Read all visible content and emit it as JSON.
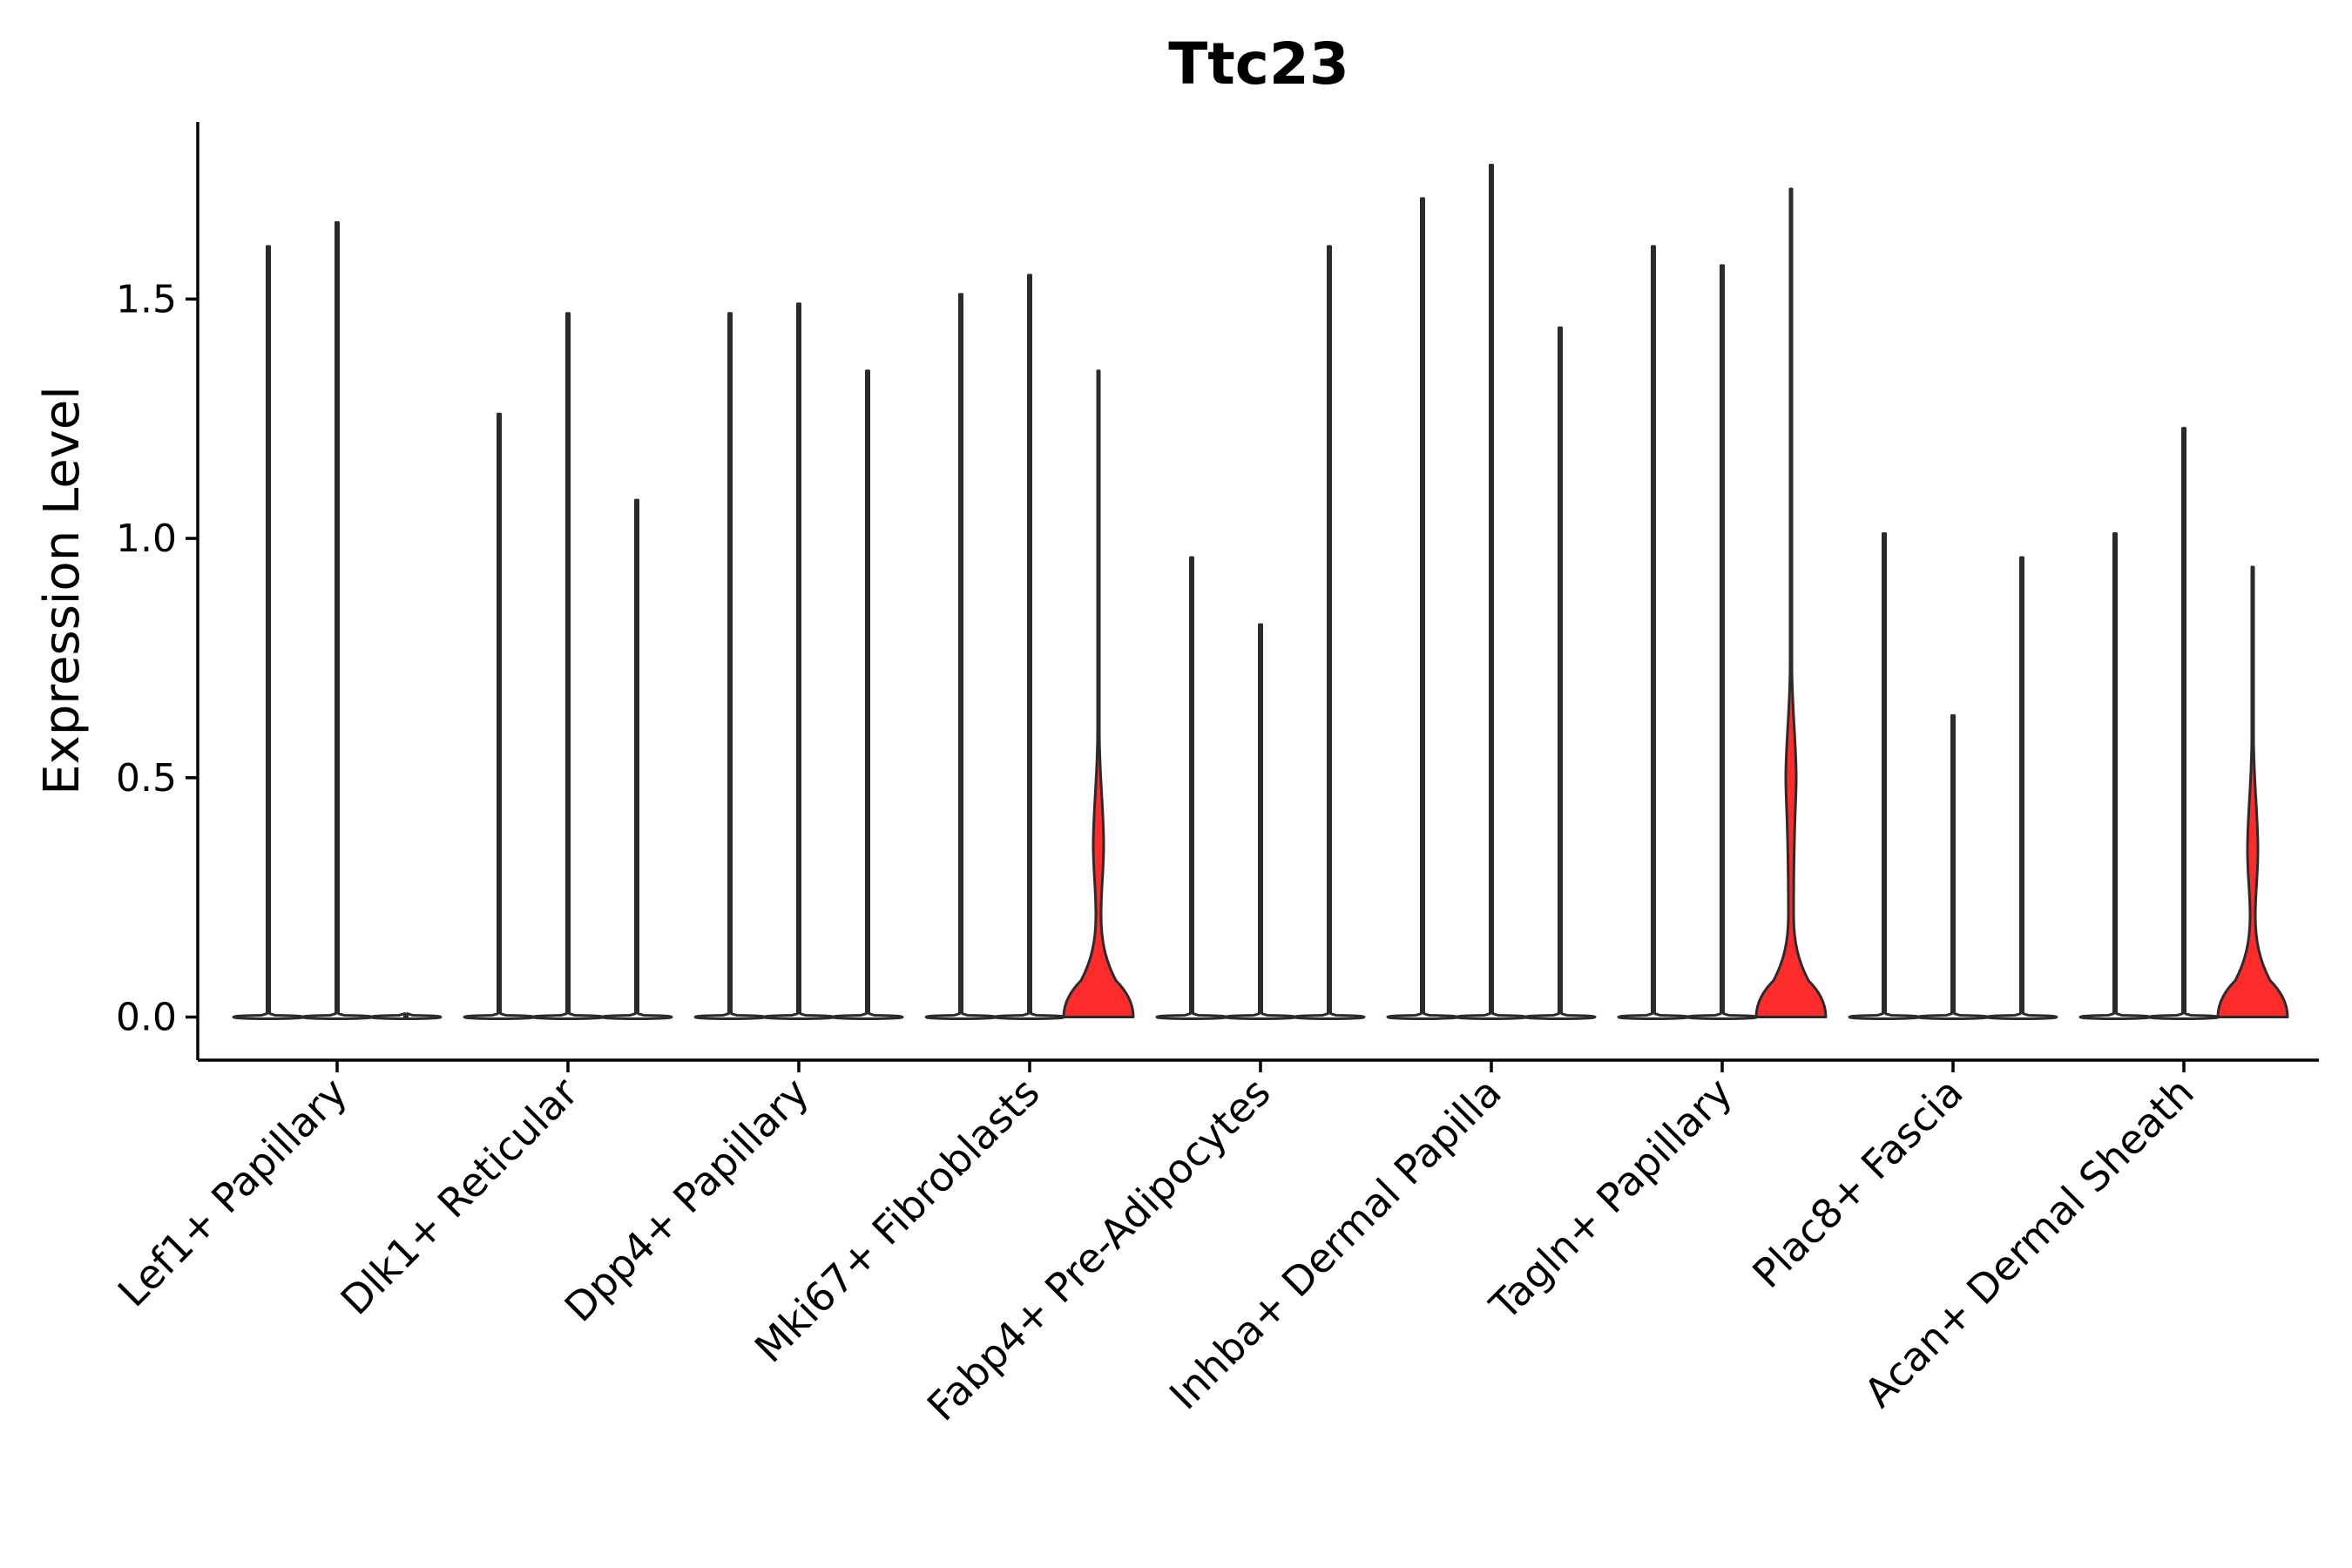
{
  "chart_data": {
    "type": "violin",
    "title": "Ttc23",
    "xlabel": "",
    "ylabel": "Expression Level",
    "ylim": [
      -0.09,
      1.87
    ],
    "yticks": [
      0.0,
      0.5,
      1.0,
      1.5
    ],
    "ytick_labels": [
      "0.0",
      "0.5",
      "1.0",
      "1.5"
    ],
    "categories": [
      "Lef1+ Papillary",
      "Dlk1+ Reticular",
      "Dpp4+ Papillary",
      "Mki67+ Fibroblasts",
      "Fabp4+ Pre-Adipocytes",
      "Inhba+ Dermal Papilla",
      "Tagln+ Papillary",
      "Plac8+ Fascia",
      "Acan+ Dermal Sheath"
    ],
    "violins": [
      {
        "group": "Lef1+ Papillary",
        "slot": 0,
        "max": 1.61,
        "shape": "flat",
        "color": "#ffffff"
      },
      {
        "group": "Lef1+ Papillary",
        "slot": 1,
        "max": 1.66,
        "shape": "flat",
        "color": "#ffffff"
      },
      {
        "group": "Lef1+ Papillary",
        "slot": 2,
        "max": 0.0,
        "shape": "flat",
        "color": "#ffffff"
      },
      {
        "group": "Dlk1+ Reticular",
        "slot": 0,
        "max": 1.26,
        "shape": "flat",
        "color": "#ffffff"
      },
      {
        "group": "Dlk1+ Reticular",
        "slot": 1,
        "max": 1.47,
        "shape": "flat",
        "color": "#ffffff"
      },
      {
        "group": "Dlk1+ Reticular",
        "slot": 2,
        "max": 1.08,
        "shape": "flat",
        "color": "#ffffff"
      },
      {
        "group": "Dpp4+ Papillary",
        "slot": 0,
        "max": 1.47,
        "shape": "flat",
        "color": "#ffffff"
      },
      {
        "group": "Dpp4+ Papillary",
        "slot": 1,
        "max": 1.49,
        "shape": "flat",
        "color": "#ffffff"
      },
      {
        "group": "Dpp4+ Papillary",
        "slot": 2,
        "max": 1.35,
        "shape": "flat",
        "color": "#ffffff"
      },
      {
        "group": "Mki67+ Fibroblasts",
        "slot": 0,
        "max": 1.51,
        "shape": "flat",
        "color": "#ffffff"
      },
      {
        "group": "Mki67+ Fibroblasts",
        "slot": 1,
        "max": 1.55,
        "shape": "flat",
        "color": "#ffffff"
      },
      {
        "group": "Mki67+ Fibroblasts",
        "slot": 2,
        "max": 1.35,
        "shape": "bimodal",
        "mode": 0.36,
        "color": "#ff2a2a"
      },
      {
        "group": "Fabp4+ Pre-Adipocytes",
        "slot": 0,
        "max": 0.96,
        "shape": "flat",
        "color": "#ffffff"
      },
      {
        "group": "Fabp4+ Pre-Adipocytes",
        "slot": 1,
        "max": 0.82,
        "shape": "flat",
        "color": "#ffffff"
      },
      {
        "group": "Fabp4+ Pre-Adipocytes",
        "slot": 2,
        "max": 1.61,
        "shape": "flat",
        "color": "#ffffff"
      },
      {
        "group": "Inhba+ Dermal Papilla",
        "slot": 0,
        "max": 1.71,
        "shape": "flat",
        "color": "#ffffff"
      },
      {
        "group": "Inhba+ Dermal Papilla",
        "slot": 1,
        "max": 1.78,
        "shape": "flat",
        "color": "#ffffff"
      },
      {
        "group": "Inhba+ Dermal Papilla",
        "slot": 2,
        "max": 1.44,
        "shape": "flat",
        "color": "#ffffff"
      },
      {
        "group": "Tagln+ Papillary",
        "slot": 0,
        "max": 1.61,
        "shape": "flat",
        "color": "#ffffff"
      },
      {
        "group": "Tagln+ Papillary",
        "slot": 1,
        "max": 1.57,
        "shape": "flat",
        "color": "#ffffff"
      },
      {
        "group": "Tagln+ Papillary",
        "slot": 2,
        "max": 1.73,
        "shape": "bimodal",
        "mode": 0.5,
        "color": "#ff2a2a"
      },
      {
        "group": "Plac8+ Fascia",
        "slot": 0,
        "max": 1.01,
        "shape": "flat",
        "color": "#ffffff"
      },
      {
        "group": "Plac8+ Fascia",
        "slot": 1,
        "max": 0.63,
        "shape": "flat",
        "color": "#ffffff"
      },
      {
        "group": "Plac8+ Fascia",
        "slot": 2,
        "max": 0.96,
        "shape": "flat",
        "color": "#ffffff"
      },
      {
        "group": "Acan+ Dermal Sheath",
        "slot": 0,
        "max": 1.01,
        "shape": "flat",
        "color": "#ffffff"
      },
      {
        "group": "Acan+ Dermal Sheath",
        "slot": 1,
        "max": 1.23,
        "shape": "flat",
        "color": "#ffffff"
      },
      {
        "group": "Acan+ Dermal Sheath",
        "slot": 2,
        "max": 0.94,
        "shape": "bimodal",
        "mode": 0.35,
        "color": "#ff2a2a"
      }
    ],
    "grid": false,
    "legend": "none"
  }
}
